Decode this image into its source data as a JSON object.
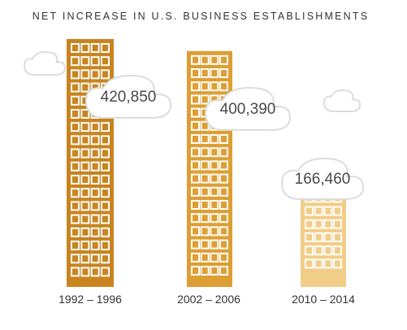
{
  "chart_data": {
    "type": "bar",
    "title": "NET INCREASE IN U.S. BUSINESS ESTABLISHMENTS",
    "categories": [
      "1992 – 1996",
      "2002 – 2006",
      "2010 – 2014"
    ],
    "values": [
      420850,
      400390,
      166460
    ],
    "value_labels": [
      "420,850",
      "400,390",
      "166,460"
    ],
    "ylim": [
      0,
      480000
    ],
    "xlabel": "",
    "ylabel": "",
    "grid": false,
    "legend": "none"
  },
  "colors": {
    "bars": [
      "#c8841f",
      "#dd9e33",
      "#f2cd88"
    ],
    "text": "#333333",
    "cloud_stroke": "#dcdcdc"
  }
}
